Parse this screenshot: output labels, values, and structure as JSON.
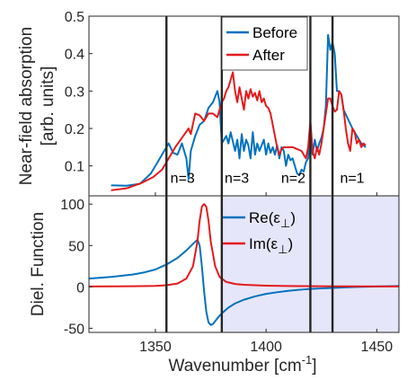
{
  "chart_data": [
    {
      "type": "line",
      "panel": "top",
      "ylabel_line1": "Near-field absorption",
      "ylabel_line2": "[arb. units]",
      "xlim": [
        1320,
        1460
      ],
      "ylim": [
        0.02,
        0.5
      ],
      "yticks": [
        0.1,
        0.2,
        0.3,
        0.4,
        0.5
      ],
      "ytick_labels": [
        "0.1",
        "0.2",
        "0.3",
        "0.4",
        "0.5"
      ],
      "legend_position": "top-center",
      "vlines": [
        1355,
        1380,
        1420,
        1430
      ],
      "annotations": [
        {
          "text": "n=3",
          "x": 1356.8,
          "y": 0.055
        },
        {
          "text": "n=3",
          "x": 1381.3,
          "y": 0.055
        },
        {
          "text": "n=2",
          "x": 1406.8,
          "y": 0.055
        },
        {
          "text": "n=1",
          "x": 1433.4,
          "y": 0.055
        }
      ],
      "series": [
        {
          "name": "Before",
          "color": "#0072BD",
          "points": [
            [
              1330,
              0.048
            ],
            [
              1337,
              0.047
            ],
            [
              1343,
              0.052
            ],
            [
              1348,
              0.08
            ],
            [
              1352,
              0.12
            ],
            [
              1356,
              0.16
            ],
            [
              1358,
              0.135
            ],
            [
              1360,
              0.13
            ],
            [
              1362,
              0.16
            ],
            [
              1364,
              0.12
            ],
            [
              1365,
              0.065
            ],
            [
              1366,
              0.14
            ],
            [
              1368,
              0.18
            ],
            [
              1370,
              0.21
            ],
            [
              1372,
              0.22
            ],
            [
              1374,
              0.255
            ],
            [
              1376,
              0.27
            ],
            [
              1378,
              0.3
            ],
            [
              1379,
              0.27
            ],
            [
              1380,
              0.16
            ],
            [
              1381,
              0.17
            ],
            [
              1382,
              0.18
            ],
            [
              1383,
              0.16
            ],
            [
              1384,
              0.19
            ],
            [
              1385,
              0.165
            ],
            [
              1386,
              0.14
            ],
            [
              1387,
              0.17
            ],
            [
              1388,
              0.12
            ],
            [
              1389,
              0.185
            ],
            [
              1390,
              0.14
            ],
            [
              1391,
              0.17
            ],
            [
              1392,
              0.155
            ],
            [
              1393,
              0.12
            ],
            [
              1394,
              0.19
            ],
            [
              1395,
              0.13
            ],
            [
              1396,
              0.16
            ],
            [
              1397,
              0.14
            ],
            [
              1398,
              0.155
            ],
            [
              1399,
              0.17
            ],
            [
              1400,
              0.13
            ],
            [
              1401,
              0.16
            ],
            [
              1402,
              0.135
            ],
            [
              1403,
              0.15
            ],
            [
              1404,
              0.13
            ],
            [
              1405,
              0.155
            ],
            [
              1406,
              0.12
            ],
            [
              1407,
              0.15
            ],
            [
              1408,
              0.14
            ],
            [
              1409,
              0.1
            ],
            [
              1410,
              0.13
            ],
            [
              1411,
              0.115
            ],
            [
              1412,
              0.12
            ],
            [
              1413,
              0.1
            ],
            [
              1414,
              0.08
            ],
            [
              1415,
              0.075
            ],
            [
              1416,
              0.09
            ],
            [
              1417,
              0.085
            ],
            [
              1418,
              0.11
            ],
            [
              1419,
              0.12
            ],
            [
              1420,
              0.18
            ],
            [
              1421,
              0.13
            ],
            [
              1422,
              0.17
            ],
            [
              1423,
              0.14
            ],
            [
              1424,
              0.16
            ],
            [
              1425,
              0.175
            ],
            [
              1426,
              0.2
            ],
            [
              1427,
              0.26
            ],
            [
              1428,
              0.45
            ],
            [
              1429,
              0.41
            ],
            [
              1430,
              0.43
            ],
            [
              1431,
              0.4
            ],
            [
              1432,
              0.3
            ],
            [
              1433,
              0.3
            ],
            [
              1434,
              0.29
            ],
            [
              1435,
              0.25
            ],
            [
              1437,
              0.225
            ],
            [
              1439,
              0.2
            ],
            [
              1441,
              0.18
            ],
            [
              1443,
              0.16
            ],
            [
              1445,
              0.15
            ]
          ]
        },
        {
          "name": "After",
          "color": "#E41A1C",
          "points": [
            [
              1330,
              0.035
            ],
            [
              1337,
              0.04
            ],
            [
              1344,
              0.055
            ],
            [
              1349,
              0.07
            ],
            [
              1353,
              0.09
            ],
            [
              1356,
              0.12
            ],
            [
              1359,
              0.15
            ],
            [
              1362,
              0.175
            ],
            [
              1365,
              0.2
            ],
            [
              1366,
              0.185
            ],
            [
              1368,
              0.24
            ],
            [
              1370,
              0.235
            ],
            [
              1372,
              0.22
            ],
            [
              1374,
              0.24
            ],
            [
              1376,
              0.24
            ],
            [
              1378,
              0.23
            ],
            [
              1379,
              0.25
            ],
            [
              1380,
              0.27
            ],
            [
              1381,
              0.28
            ],
            [
              1382,
              0.3
            ],
            [
              1383,
              0.31
            ],
            [
              1384,
              0.33
            ],
            [
              1385,
              0.35
            ],
            [
              1386,
              0.3
            ],
            [
              1387,
              0.27
            ],
            [
              1388,
              0.31
            ],
            [
              1389,
              0.28
            ],
            [
              1390,
              0.25
            ],
            [
              1391,
              0.3
            ],
            [
              1392,
              0.28
            ],
            [
              1393,
              0.305
            ],
            [
              1394,
              0.285
            ],
            [
              1395,
              0.295
            ],
            [
              1396,
              0.275
            ],
            [
              1397,
              0.3
            ],
            [
              1398,
              0.27
            ],
            [
              1399,
              0.28
            ],
            [
              1400,
              0.26
            ],
            [
              1401,
              0.255
            ],
            [
              1402,
              0.24
            ],
            [
              1403,
              0.21
            ],
            [
              1404,
              0.18
            ],
            [
              1405,
              0.15
            ],
            [
              1406,
              0.13
            ],
            [
              1407,
              0.145
            ],
            [
              1408,
              0.15
            ],
            [
              1410,
              0.15
            ],
            [
              1412,
              0.15
            ],
            [
              1414,
              0.145
            ],
            [
              1416,
              0.14
            ],
            [
              1417,
              0.13
            ],
            [
              1418,
              0.12
            ],
            [
              1419,
              0.15
            ],
            [
              1420,
              0.22
            ],
            [
              1421,
              0.14
            ],
            [
              1422,
              0.12
            ],
            [
              1423,
              0.15
            ],
            [
              1424,
              0.13
            ],
            [
              1425,
              0.16
            ],
            [
              1426,
              0.2
            ],
            [
              1427,
              0.24
            ],
            [
              1428,
              0.28
            ],
            [
              1429,
              0.28
            ],
            [
              1430,
              0.26
            ],
            [
              1431,
              0.245
            ],
            [
              1432,
              0.25
            ],
            [
              1433,
              0.3
            ],
            [
              1434,
              0.29
            ],
            [
              1435,
              0.25
            ],
            [
              1436,
              0.2
            ],
            [
              1437,
              0.16
            ],
            [
              1438,
              0.14
            ],
            [
              1439,
              0.2
            ],
            [
              1440,
              0.19
            ],
            [
              1441,
              0.16
            ],
            [
              1442,
              0.17
            ],
            [
              1443,
              0.15
            ],
            [
              1444,
              0.16
            ],
            [
              1445,
              0.155
            ]
          ]
        }
      ]
    },
    {
      "type": "line",
      "panel": "bottom",
      "xlabel": "Wavenumber [cm",
      "xlabel_sup": "-1",
      "xlabel_close": "]",
      "ylabel": "Diel. Function",
      "xlim": [
        1320,
        1460
      ],
      "ylim": [
        -55,
        110
      ],
      "xticks": [
        1350,
        1400,
        1450
      ],
      "xtick_labels": [
        "1350",
        "1400",
        "1450"
      ],
      "yticks": [
        -50,
        0,
        50,
        100
      ],
      "ytick_labels": [
        "-50",
        "0",
        "50",
        "100"
      ],
      "legend_position": "top-right",
      "shaded_region": {
        "x": [
          1380,
          1460
        ],
        "color": "#E6E6FA"
      },
      "vlines": [
        1355,
        1380,
        1420,
        1430
      ],
      "series": [
        {
          "name": "Re(ε⊥)",
          "legend_base": "Re(ε",
          "legend_sub": "⊥",
          "legend_close": ")",
          "color": "#0072BD",
          "points": [
            [
              1320,
              10
            ],
            [
              1330,
              12
            ],
            [
              1340,
              15
            ],
            [
              1345,
              17.5
            ],
            [
              1350,
              21
            ],
            [
              1355,
              27
            ],
            [
              1360,
              35
            ],
            [
              1364,
              44
            ],
            [
              1367,
              52
            ],
            [
              1369,
              57
            ],
            [
              1370,
              50
            ],
            [
              1371,
              25
            ],
            [
              1372,
              -5
            ],
            [
              1373,
              -30
            ],
            [
              1374,
              -43
            ],
            [
              1375,
              -46
            ],
            [
              1376,
              -45
            ],
            [
              1378,
              -38
            ],
            [
              1380,
              -32
            ],
            [
              1383,
              -25
            ],
            [
              1386,
              -20
            ],
            [
              1390,
              -15.5
            ],
            [
              1395,
              -11.5
            ],
            [
              1400,
              -8.5
            ],
            [
              1405,
              -6.5
            ],
            [
              1410,
              -4.8
            ],
            [
              1415,
              -3.5
            ],
            [
              1420,
              -2.5
            ],
            [
              1425,
              -1.8
            ],
            [
              1430,
              -1.2
            ],
            [
              1440,
              -0.2
            ],
            [
              1450,
              0.5
            ],
            [
              1460,
              1
            ]
          ]
        },
        {
          "name": "Im(ε⊥)",
          "legend_base": "Im(ε",
          "legend_sub": "⊥",
          "legend_close": ")",
          "color": "#E41A1C",
          "points": [
            [
              1320,
              0.5
            ],
            [
              1340,
              0.8
            ],
            [
              1350,
              1.2
            ],
            [
              1355,
              2
            ],
            [
              1360,
              4
            ],
            [
              1364,
              10
            ],
            [
              1367,
              25
            ],
            [
              1369,
              55
            ],
            [
              1370,
              80
            ],
            [
              1371,
              97
            ],
            [
              1372,
              100
            ],
            [
              1373,
              97
            ],
            [
              1374,
              80
            ],
            [
              1375,
              55
            ],
            [
              1377,
              25
            ],
            [
              1379,
              12
            ],
            [
              1382,
              6
            ],
            [
              1386,
              3.5
            ],
            [
              1390,
              2.5
            ],
            [
              1400,
              1.5
            ],
            [
              1410,
              1
            ],
            [
              1430,
              0.7
            ],
            [
              1460,
              0.5
            ]
          ]
        }
      ]
    }
  ]
}
